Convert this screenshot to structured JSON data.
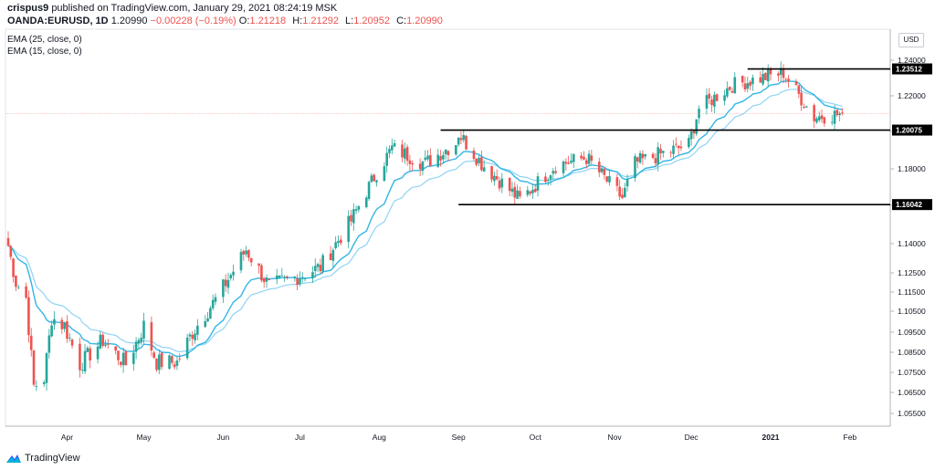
{
  "header": {
    "user": "crispus9",
    "published": "published on TradingView.com, January 29, 2021 08:24:19 MSK",
    "symbol": "OANDA:EURUSD, 1D",
    "last": "1.20990",
    "change": "−0.00228 (−0.19%)",
    "ohlc": [
      {
        "label": "O:",
        "value": "1.21218"
      },
      {
        "label": "H:",
        "value": "1.21292"
      },
      {
        "label": "L:",
        "value": "1.20952"
      },
      {
        "label": "C:",
        "value": "1.20990"
      }
    ]
  },
  "indicators": [
    "EMA (25, close, 0)",
    "EMA (15, close, 0)"
  ],
  "currency": "USD",
  "footer": {
    "brand": "TradingView"
  },
  "colors": {
    "up": "#26a69a",
    "down": "#ef5350",
    "ema25": "#33b5e5",
    "ema15": "#8fd3f4",
    "level": "#000000"
  },
  "chart_data": {
    "type": "candlestick",
    "symbol": "EURUSD",
    "y_ticks": [
      "1.24000",
      "1.22000",
      "1.20000",
      "1.18000",
      "1.16000",
      "1.14000",
      "1.12500",
      "1.11500",
      "1.10500",
      "1.09500",
      "1.08500",
      "1.07500",
      "1.06500",
      "1.05500"
    ],
    "x_ticks": [
      "Apr",
      "May",
      "Jun",
      "Jul",
      "Aug",
      "Sep",
      "Oct",
      "Nov",
      "Dec",
      "2021",
      "Feb"
    ],
    "levels": [
      {
        "label": "1.23512",
        "value": 1.23512,
        "from": "2020-12-23",
        "to": "2021-02-28"
      },
      {
        "label": "1.20075",
        "value": 1.20075,
        "from": "2020-08-25",
        "to": "2021-02-28"
      },
      {
        "label": "1.16042",
        "value": 1.16042,
        "from": "2020-09-01",
        "to": "2021-02-28"
      }
    ],
    "last_price": 1.2099,
    "anchors": [
      {
        "date": "2020-03-09",
        "close": 1.139
      },
      {
        "date": "2020-03-12",
        "close": 1.12
      },
      {
        "date": "2020-03-16",
        "close": 1.112
      },
      {
        "date": "2020-03-19",
        "close": 1.068
      },
      {
        "date": "2020-03-23",
        "close": 1.072
      },
      {
        "date": "2020-03-26",
        "close": 1.102
      },
      {
        "date": "2020-03-31",
        "close": 1.098
      },
      {
        "date": "2020-04-06",
        "close": 1.079
      },
      {
        "date": "2020-04-15",
        "close": 1.091
      },
      {
        "date": "2020-04-24",
        "close": 1.079
      },
      {
        "date": "2020-05-01",
        "close": 1.098
      },
      {
        "date": "2020-05-06",
        "close": 1.08
      },
      {
        "date": "2020-05-14",
        "close": 1.08
      },
      {
        "date": "2020-05-20",
        "close": 1.095
      },
      {
        "date": "2020-05-29",
        "close": 1.111
      },
      {
        "date": "2020-06-10",
        "close": 1.137
      },
      {
        "date": "2020-06-19",
        "close": 1.118
      },
      {
        "date": "2020-06-30",
        "close": 1.123
      },
      {
        "date": "2020-07-09",
        "close": 1.128
      },
      {
        "date": "2020-07-21",
        "close": 1.152
      },
      {
        "date": "2020-07-31",
        "close": 1.178
      },
      {
        "date": "2020-08-06",
        "close": 1.191
      },
      {
        "date": "2020-08-19",
        "close": 1.183
      },
      {
        "date": "2020-08-31",
        "close": 1.194
      },
      {
        "date": "2020-09-01",
        "close": 1.199
      },
      {
        "date": "2020-09-10",
        "close": 1.183
      },
      {
        "date": "2020-09-25",
        "close": 1.163
      },
      {
        "date": "2020-10-09",
        "close": 1.182
      },
      {
        "date": "2020-10-21",
        "close": 1.186
      },
      {
        "date": "2020-11-04",
        "close": 1.164
      },
      {
        "date": "2020-11-09",
        "close": 1.183
      },
      {
        "date": "2020-11-30",
        "close": 1.193
      },
      {
        "date": "2020-12-04",
        "close": 1.213
      },
      {
        "date": "2020-12-17",
        "close": 1.226
      },
      {
        "date": "2021-01-06",
        "close": 1.233
      },
      {
        "date": "2021-01-18",
        "close": 1.208
      },
      {
        "date": "2021-01-29",
        "close": 1.2099
      }
    ]
  }
}
